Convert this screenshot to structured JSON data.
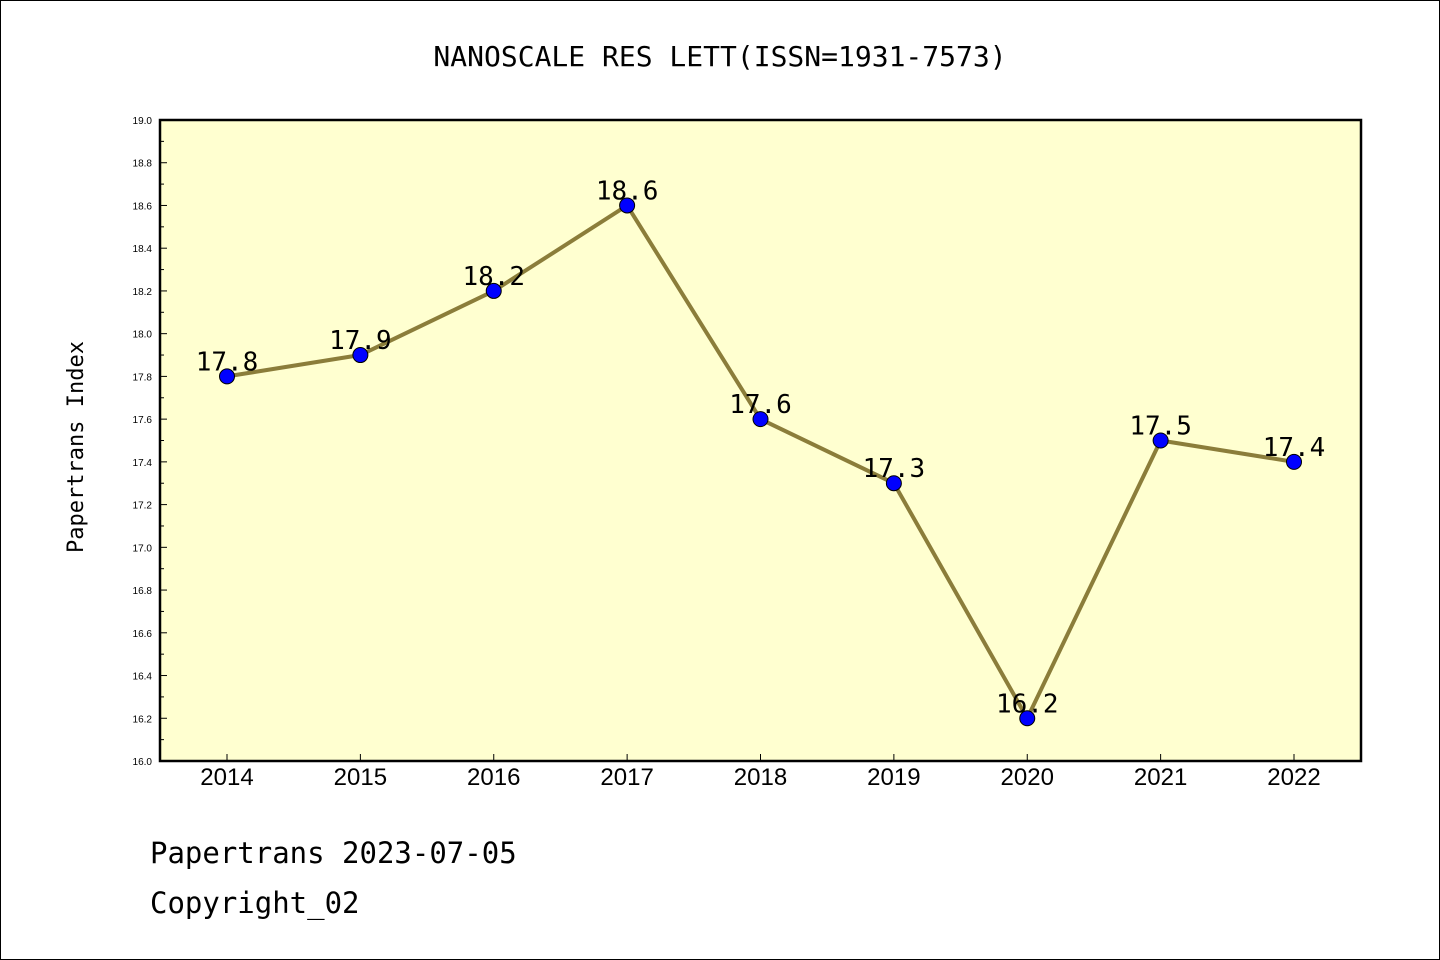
{
  "chart_data": {
    "type": "line",
    "title": "NANOSCALE RES LETT(ISSN=1931-7573)",
    "xlabel": "",
    "ylabel": "Papertrans Index",
    "categories": [
      "2014",
      "2015",
      "2016",
      "2017",
      "2018",
      "2019",
      "2020",
      "2021",
      "2022"
    ],
    "values": [
      17.8,
      17.9,
      18.2,
      18.6,
      17.6,
      17.3,
      16.2,
      17.5,
      17.4
    ],
    "data_labels": [
      "17.8",
      "17.9",
      "18.2",
      "18.6",
      "17.6",
      "17.3",
      "16.2",
      "17.5",
      "17.4"
    ],
    "ylim": [
      16.0,
      19.0
    ],
    "yticks": [
      "16.0",
      "16.2",
      "16.4",
      "16.6",
      "16.8",
      "17.0",
      "17.2",
      "17.4",
      "17.6",
      "17.8",
      "18.0",
      "18.2",
      "18.4",
      "18.6",
      "18.8",
      "19.0"
    ],
    "grid": false,
    "colors": {
      "plot_background": "#ffffd0",
      "line": "#8b7d3a",
      "marker": "#0000ff"
    }
  },
  "footer": {
    "line1": "Papertrans 2023-07-05",
    "line2": "Copyright_02"
  }
}
